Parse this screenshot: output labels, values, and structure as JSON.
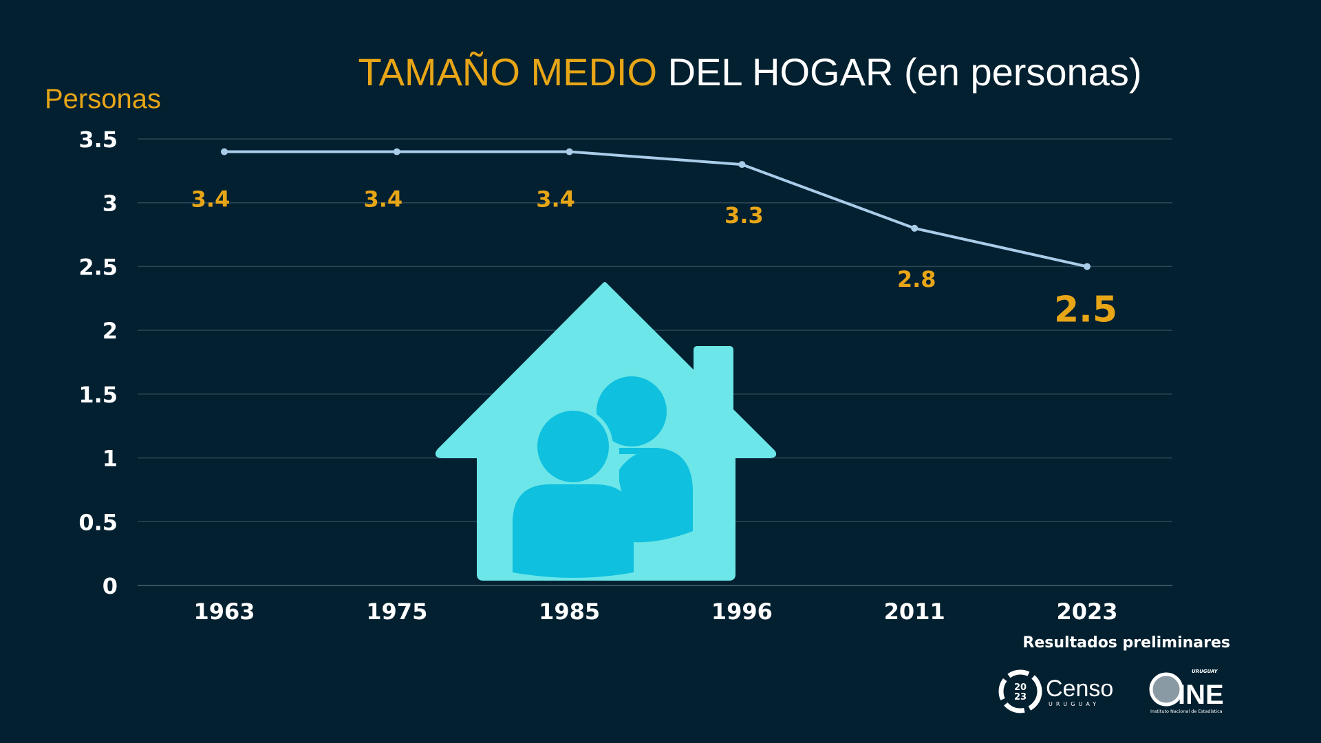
{
  "title": {
    "highlight": "TAMAÑO MEDIO",
    "rest": "DEL HOGAR",
    "paren": "(en personas)"
  },
  "chart_data": {
    "type": "line",
    "title": "TAMAÑO MEDIO DEL HOGAR (en personas)",
    "ylabel": "Personas",
    "xlabel": "",
    "categories": [
      "1963",
      "1975",
      "1985",
      "1996",
      "2011",
      "2023"
    ],
    "values": [
      3.4,
      3.4,
      3.4,
      3.3,
      2.8,
      2.5
    ],
    "data_labels": [
      "3.4",
      "3.4",
      "3.4",
      "3.3",
      "2.8",
      "2.5"
    ],
    "ylim": [
      0,
      3.5
    ],
    "yticks": [
      "0",
      "0.5",
      "1",
      "1.5",
      "2",
      "2.5",
      "3",
      "3.5"
    ],
    "grid": true,
    "colors": {
      "line": "#a9cde9",
      "label": "#e8a617",
      "grid": "#2b4756"
    }
  },
  "footer": {
    "note": "Resultados preliminares"
  },
  "logos": {
    "censo": "Censo",
    "censo_sub": "URUGUAY",
    "censo_year": "20 23",
    "ine": "INE",
    "ine_top": "URUGUAY",
    "ine_sub": "Instituto Nacional de Estadística"
  }
}
